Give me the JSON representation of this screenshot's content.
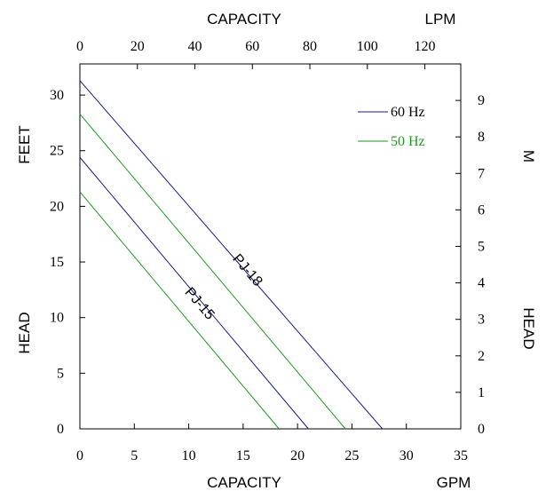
{
  "chart_data": {
    "type": "line",
    "title": "",
    "bottom_axis": {
      "label": "CAPACITY",
      "unit": "GPM",
      "ticks": [
        0,
        5,
        10,
        15,
        20,
        25,
        30,
        35
      ],
      "range": [
        0,
        35
      ]
    },
    "top_axis": {
      "label": "CAPACITY",
      "unit": "LPM",
      "ticks": [
        0,
        20,
        40,
        60,
        80,
        100,
        120
      ],
      "range": [
        0,
        132.5
      ]
    },
    "left_axis": {
      "label_top": "FEET",
      "label_bottom": "HEAD",
      "ticks": [
        0,
        5,
        10,
        15,
        20,
        25,
        30
      ],
      "range": [
        0,
        32.8
      ]
    },
    "right_axis": {
      "label_top": "M",
      "label_bottom": "HEAD",
      "ticks": [
        0,
        1,
        2,
        3,
        4,
        5,
        6,
        7,
        8,
        9
      ],
      "range": [
        0,
        10
      ]
    },
    "grid": false,
    "legend": {
      "placement": "top-right",
      "entries": [
        {
          "label": "60 Hz",
          "color": "#1a1a8c"
        },
        {
          "label": "50 Hz",
          "color": "#1e9a1e"
        }
      ]
    },
    "series": [
      {
        "curve": "PJ-18",
        "freq": "60 Hz",
        "color": "#1a1a8c",
        "x": [
          0,
          27.8
        ],
        "y": [
          31.3,
          0
        ]
      },
      {
        "curve": "PJ-18",
        "freq": "50 Hz",
        "color": "#1e9a1e",
        "x": [
          0,
          24.4
        ],
        "y": [
          28.3,
          0
        ]
      },
      {
        "curve": "PJ-15",
        "freq": "60 Hz",
        "color": "#1a1a8c",
        "x": [
          0,
          21
        ],
        "y": [
          24.4,
          0
        ]
      },
      {
        "curve": "PJ-15",
        "freq": "50 Hz",
        "color": "#1e9a1e",
        "x": [
          0,
          18.3
        ],
        "y": [
          21.3,
          0
        ]
      }
    ],
    "annotations": [
      {
        "text": "PJ-18",
        "x": 15.1,
        "y": 14
      },
      {
        "text": "PJ-15",
        "x": 10.7,
        "y": 11
      }
    ]
  }
}
